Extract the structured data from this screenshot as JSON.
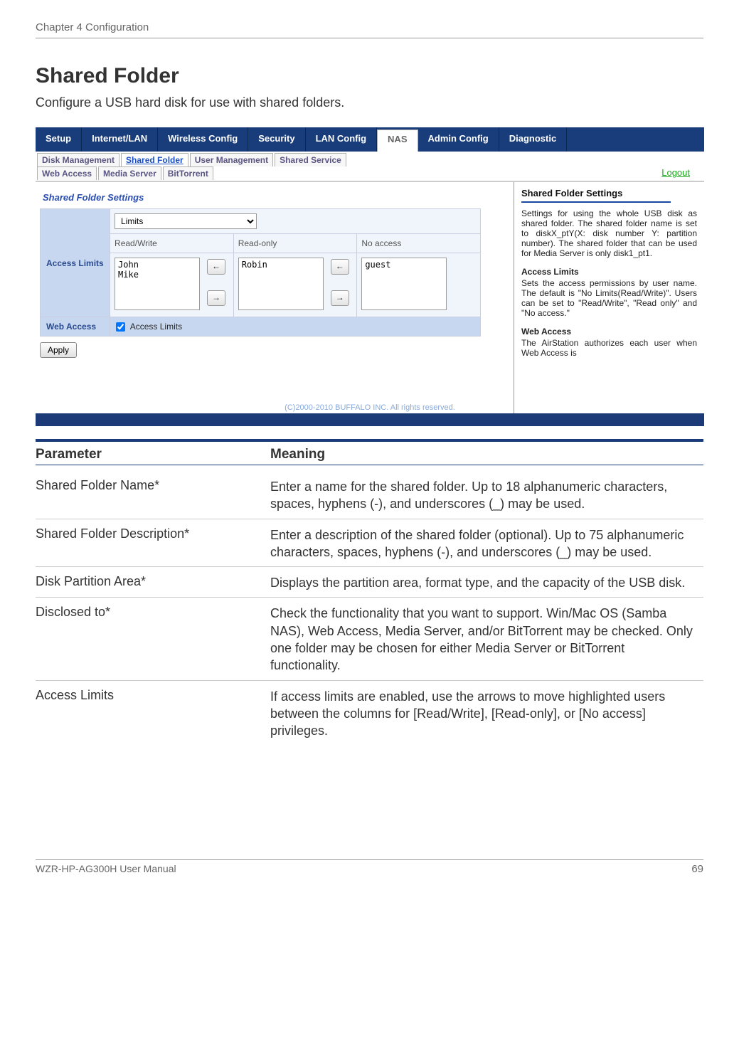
{
  "doc": {
    "chapterHead": "Chapter 4  Configuration",
    "sectionTitle": "Shared Folder",
    "intro": "Configure a USB hard disk for use with shared folders.",
    "footerLeft": "WZR-HP-AG300H User Manual",
    "footerRight": "69"
  },
  "colors": {
    "navBg": "#193d7a",
    "navRule": "#1a3a7c",
    "panelHdr": "#c7d7ef",
    "panelCell": "#f0f5fb",
    "linkBlue": "#2a4eb0",
    "logoutGreen": "#1aa81a"
  },
  "nav": {
    "tabs": [
      "Setup",
      "Internet/LAN",
      "Wireless Config",
      "Security",
      "LAN Config",
      "NAS",
      "Admin Config",
      "Diagnostic"
    ],
    "activeTab": "NAS",
    "subTabs1": [
      "Disk Management",
      "Shared Folder",
      "User Management",
      "Shared Service"
    ],
    "subTabs2": [
      "Web Access",
      "Media Server",
      "BitTorrent"
    ],
    "activeSubTab": "Shared Folder",
    "logout": "Logout"
  },
  "panel": {
    "title": "Shared Folder Settings",
    "accessLimitsHdr": "Access Limits",
    "limitsSelectValue": "Limits",
    "colRW": "Read/Write",
    "colRO": "Read-only",
    "colNA": "No access",
    "usersRW": "John\nMike",
    "usersRO": "Robin",
    "usersNA": "guest",
    "webAccessHdr": "Web Access",
    "webAccessChkLabel": "Access Limits",
    "applyLabel": "Apply"
  },
  "help": {
    "h1": "Shared Folder Settings",
    "p1": "Settings for using the whole USB disk as shared folder. The shared folder name is set to diskX_ptY(X: disk number Y: partition number). The shared folder that can be used for Media Server is only disk1_pt1.",
    "h2": "Access Limits",
    "p2": "Sets the access permissions by user name. The default is \"No Limits(Read/Write)\". Users can be set to \"Read/Write\", \"Read only\" and \"No access.\"",
    "h3": "Web Access",
    "p3": "The AirStation authorizes each user when Web Access is"
  },
  "copyright": "(C)2000-2010 BUFFALO INC. All rights reserved.",
  "paramTable": {
    "head1": "Parameter",
    "head2": "Meaning",
    "rows": [
      {
        "p": "Shared Folder Name*",
        "m": "Enter a name for the shared folder.  Up to 18 alphanumeric characters, spaces, hyphens (-), and underscores (_) may be used."
      },
      {
        "p": "Shared Folder Description*",
        "m": "Enter a description of the shared folder (optional).  Up to 75 alphanumeric characters, spaces, hyphens (-), and underscores (_) may be used."
      },
      {
        "p": "Disk Partition Area*",
        "m": "Displays the partition area, format type, and the capacity of the USB disk."
      },
      {
        "p": "Disclosed to*",
        "m": "Check the functionality that you want to support.  Win/Mac OS (Samba NAS), Web Access, Media Server, and/or BitTorrent may be checked.  Only one folder may be chosen for either Media Server or BitTorrent functionality."
      },
      {
        "p": "Access Limits",
        "m": "If access limits are enabled, use the arrows to move highlighted users between the columns for [Read/Write], [Read-only], or [No access] privileges."
      }
    ]
  }
}
